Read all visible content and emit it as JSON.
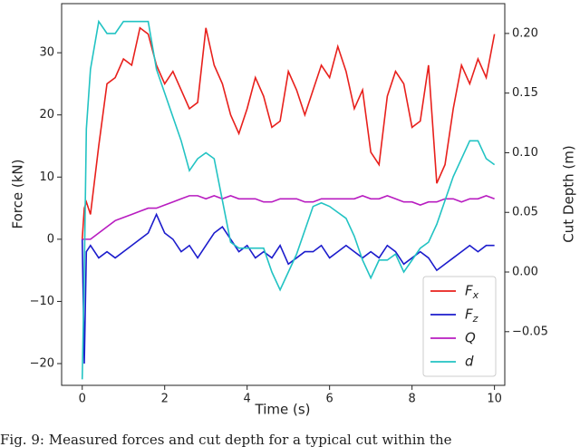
{
  "chart_data": {
    "type": "line",
    "xlabel": "Time (s)",
    "ylabel": "Force (kN)",
    "y2label": "Cut Depth (m)",
    "x": [
      0,
      0.05,
      0.1,
      0.2,
      0.4,
      0.6,
      0.8,
      1.0,
      1.2,
      1.4,
      1.6,
      1.8,
      2.0,
      2.2,
      2.4,
      2.6,
      2.8,
      3.0,
      3.2,
      3.4,
      3.6,
      3.8,
      4.0,
      4.2,
      4.4,
      4.6,
      4.8,
      5.0,
      5.2,
      5.4,
      5.6,
      5.8,
      6.0,
      6.2,
      6.4,
      6.6,
      6.8,
      7.0,
      7.2,
      7.4,
      7.6,
      7.8,
      8.0,
      8.2,
      8.4,
      8.6,
      8.8,
      9.0,
      9.2,
      9.4,
      9.6,
      9.8,
      10.0
    ],
    "series": [
      {
        "name": "Fx",
        "color": "#e8201c",
        "values": [
          0,
          5,
          6,
          4,
          15,
          25,
          26,
          29,
          28,
          34,
          33,
          28,
          25,
          27,
          24,
          21,
          22,
          34,
          28,
          25,
          20,
          17,
          21,
          26,
          23,
          18,
          19,
          27,
          24,
          20,
          24,
          28,
          26,
          31,
          27,
          21,
          24,
          14,
          12,
          23,
          27,
          25,
          18,
          19,
          28,
          9,
          12,
          21,
          28,
          25,
          29,
          26,
          33
        ]
      },
      {
        "name": "Fz",
        "color": "#1c1ccc",
        "values": [
          0,
          -20,
          -2,
          -1,
          -3,
          -2,
          -3,
          -2,
          -1,
          0,
          1,
          4,
          1,
          0,
          -2,
          -1,
          -3,
          -1,
          1,
          2,
          0,
          -2,
          -1,
          -3,
          -2,
          -3,
          -1,
          -4,
          -3,
          -2,
          -2,
          -1,
          -3,
          -2,
          -1,
          -2,
          -3,
          -2,
          -3,
          -1,
          -2,
          -4,
          -3,
          -2,
          -3,
          -5,
          -4,
          -3,
          -2,
          -1,
          -2,
          -1,
          -1
        ]
      },
      {
        "name": "Q",
        "color": "#b81cc0",
        "values": [
          0,
          0,
          0,
          0,
          1,
          2,
          3,
          3.5,
          4,
          4.5,
          5,
          5,
          5.5,
          6,
          6.5,
          7,
          7,
          6.5,
          7,
          6.5,
          7,
          6.5,
          6.5,
          6.5,
          6,
          6,
          6.5,
          6.5,
          6.5,
          6,
          6,
          6.5,
          6.5,
          6.5,
          6.5,
          6.5,
          7,
          6.5,
          6.5,
          7,
          6.5,
          6,
          6,
          5.5,
          6,
          6,
          6.5,
          6.5,
          6,
          6.5,
          6.5,
          7,
          6.5
        ]
      },
      {
        "name": "d",
        "color": "#22c3c3",
        "axis": "y2",
        "values": [
          -0.09,
          0.0,
          0.12,
          0.17,
          0.21,
          0.2,
          0.2,
          0.21,
          0.21,
          0.21,
          0.21,
          0.17,
          0.15,
          0.13,
          0.11,
          0.085,
          0.095,
          0.1,
          0.095,
          0.06,
          0.025,
          0.02,
          0.02,
          0.02,
          0.02,
          0.0,
          -0.015,
          0.0,
          0.015,
          0.035,
          0.055,
          0.058,
          0.055,
          0.05,
          0.045,
          0.03,
          0.01,
          -0.005,
          0.01,
          0.01,
          0.015,
          0.0,
          0.01,
          0.02,
          0.025,
          0.04,
          0.06,
          0.08,
          0.095,
          0.11,
          0.11,
          0.095,
          0.09
        ]
      }
    ],
    "xlim": [
      -0.5,
      10.25
    ],
    "xticks": [
      0,
      2,
      4,
      6,
      8,
      10
    ],
    "ylim": [
      -23.5,
      37.9
    ],
    "yticks": [
      {
        "value": -20,
        "label": "−20"
      },
      {
        "value": -10,
        "label": "−10"
      },
      0,
      10,
      20,
      30
    ],
    "y2lim": [
      -0.095,
      0.225
    ],
    "y2ticks": [
      {
        "value": -0.05,
        "label": "−0.05"
      },
      {
        "value": 0,
        "label": "0.00"
      },
      {
        "value": 0.05,
        "label": "0.05"
      },
      {
        "value": 0.1,
        "label": "0.10"
      },
      {
        "value": 0.15,
        "label": "0.15"
      },
      {
        "value": 0.2,
        "label": "0.20"
      }
    ],
    "legend": "lower right",
    "grid": false,
    "caption": "Fig. 9: Measured forces and cut depth for a typical cut within the"
  }
}
